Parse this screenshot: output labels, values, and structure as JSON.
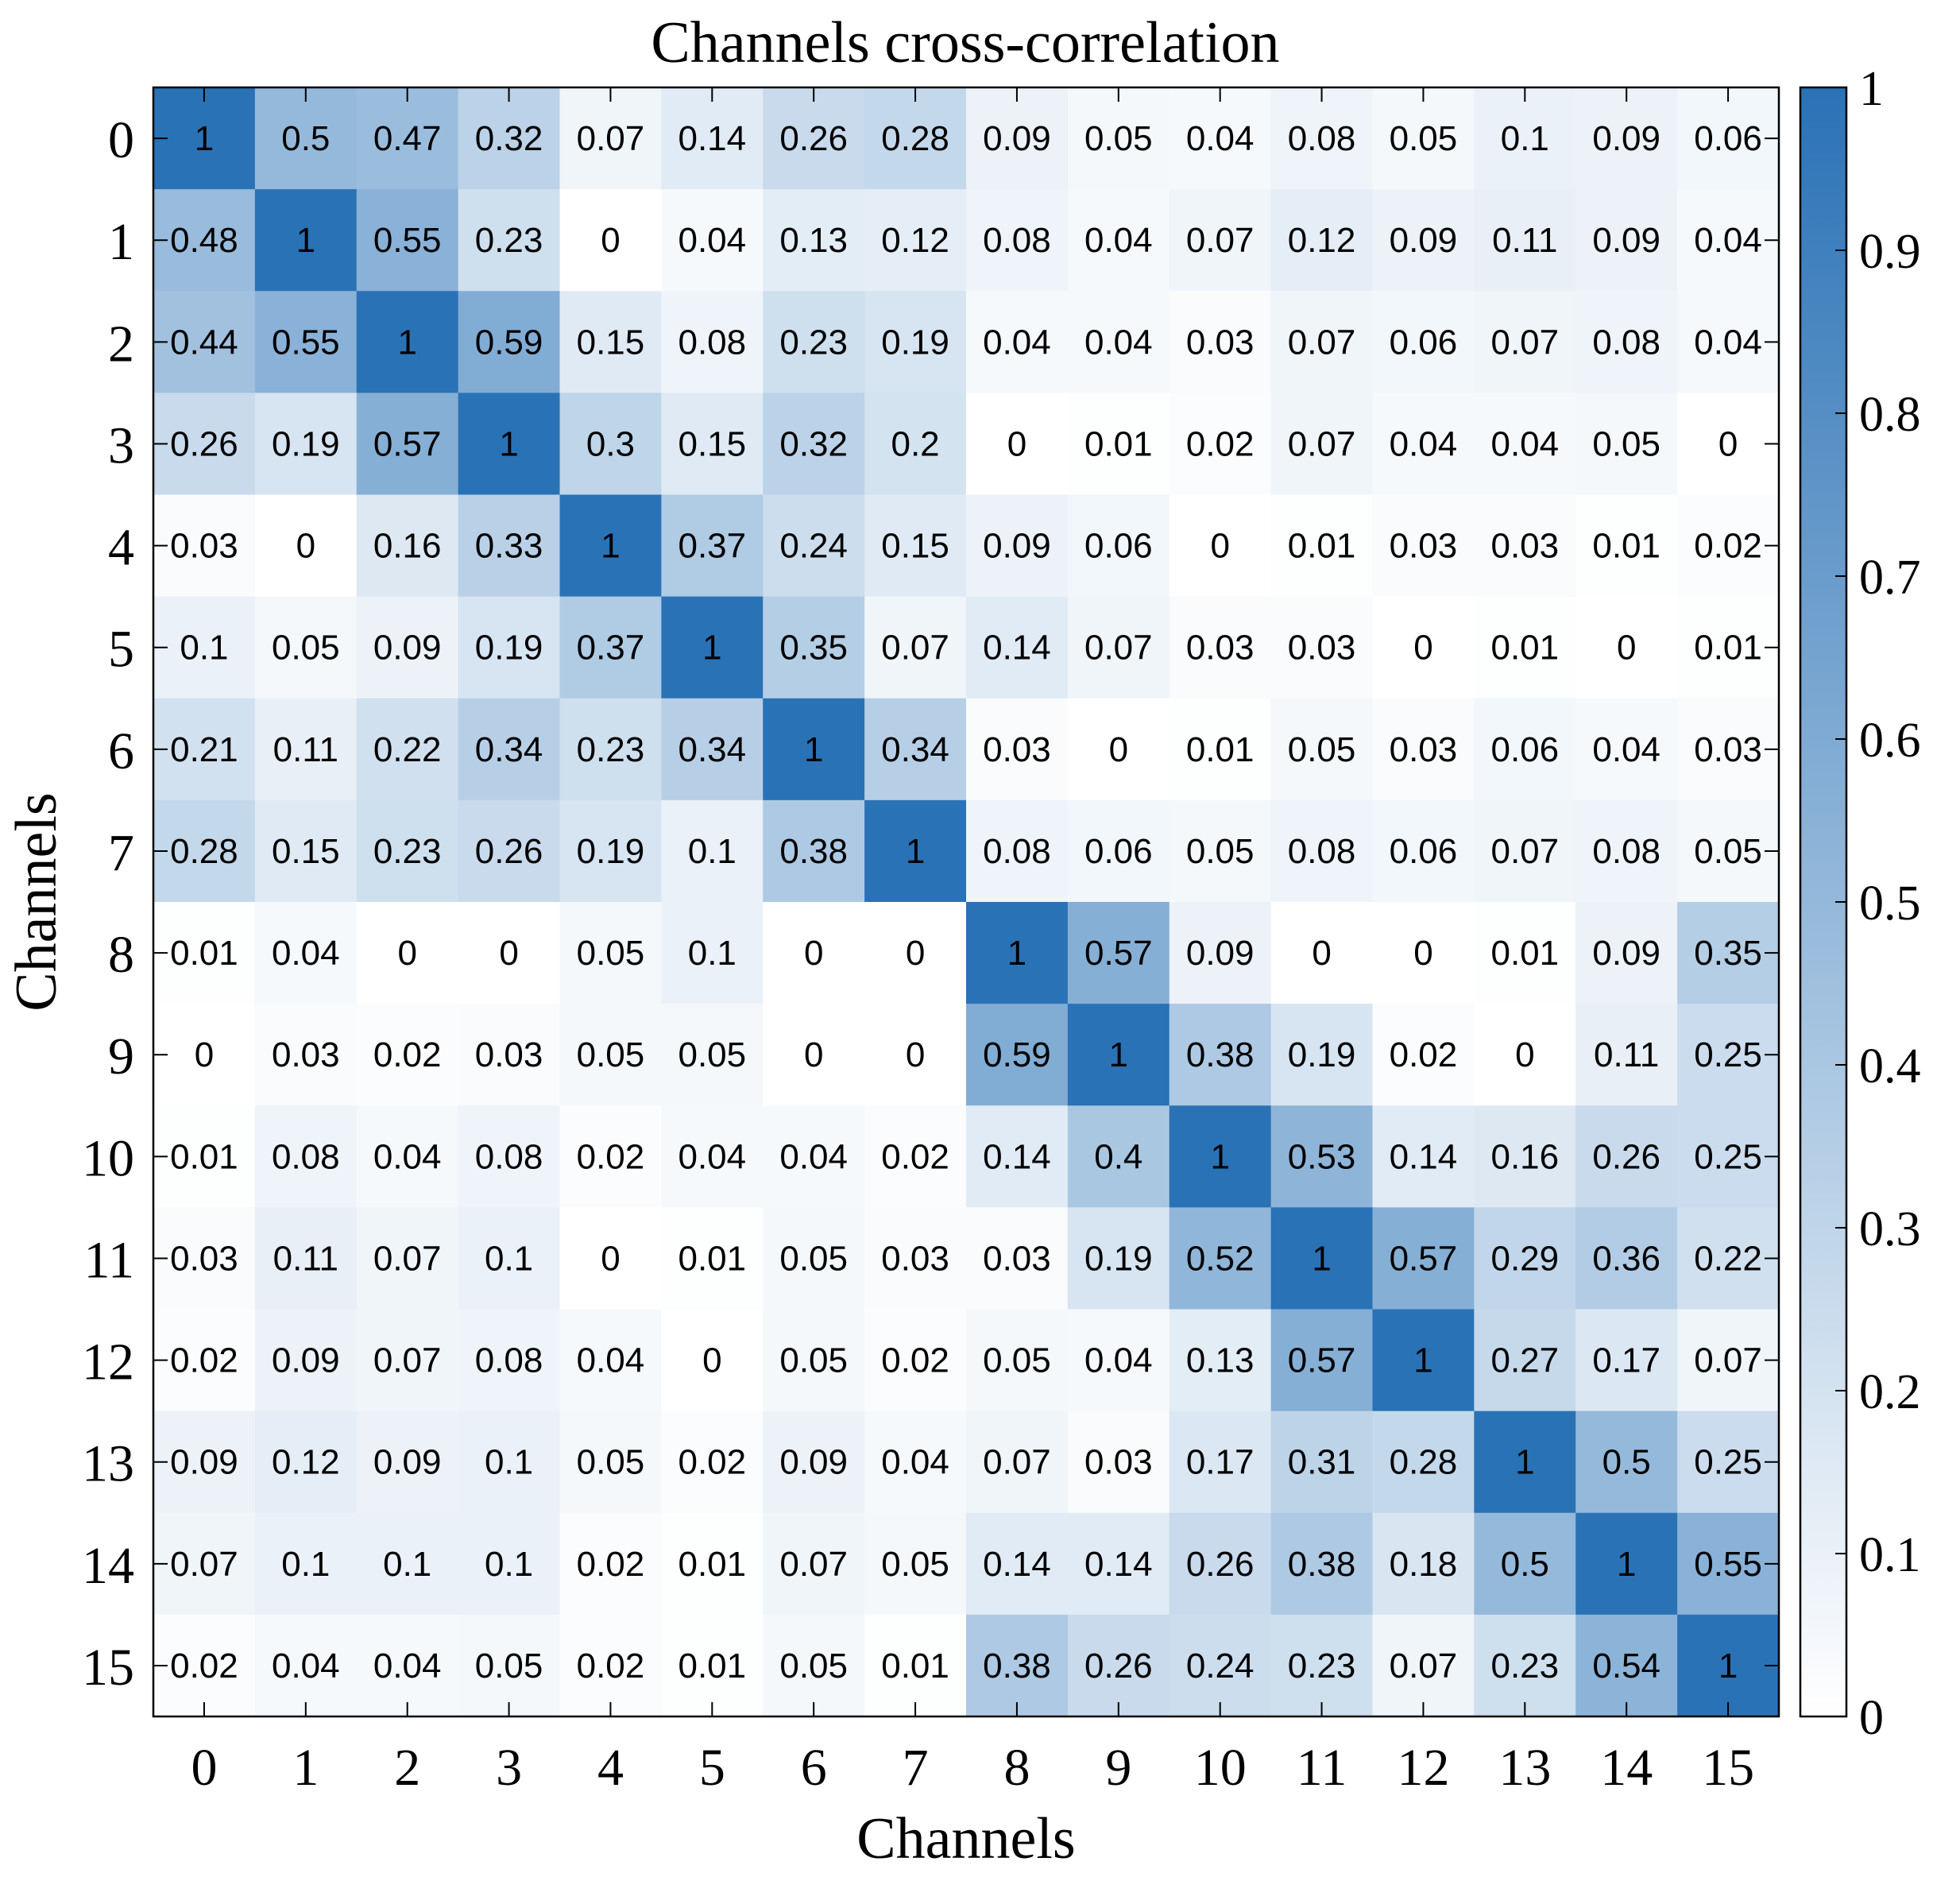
{
  "chart_data": {
    "type": "heatmap",
    "title": "Channels cross-correlation",
    "xlabel": "Channels",
    "ylabel": "Channels",
    "x_categories": [
      "0",
      "1",
      "2",
      "3",
      "4",
      "5",
      "6",
      "7",
      "8",
      "9",
      "10",
      "11",
      "12",
      "13",
      "14",
      "15"
    ],
    "y_categories": [
      "0",
      "1",
      "2",
      "3",
      "4",
      "5",
      "6",
      "7",
      "8",
      "9",
      "10",
      "11",
      "12",
      "13",
      "14",
      "15"
    ],
    "values": [
      [
        1,
        0.5,
        0.47,
        0.32,
        0.07,
        0.14,
        0.26,
        0.28,
        0.09,
        0.05,
        0.04,
        0.08,
        0.05,
        0.1,
        0.09,
        0.06
      ],
      [
        0.48,
        1,
        0.55,
        0.23,
        0,
        0.04,
        0.13,
        0.12,
        0.08,
        0.04,
        0.07,
        0.12,
        0.09,
        0.11,
        0.09,
        0.04
      ],
      [
        0.44,
        0.55,
        1,
        0.59,
        0.15,
        0.08,
        0.23,
        0.19,
        0.04,
        0.04,
        0.03,
        0.07,
        0.06,
        0.07,
        0.08,
        0.04
      ],
      [
        0.26,
        0.19,
        0.57,
        1,
        0.3,
        0.15,
        0.32,
        0.2,
        0,
        0.01,
        0.02,
        0.07,
        0.04,
        0.04,
        0.05,
        0
      ],
      [
        0.03,
        0,
        0.16,
        0.33,
        1,
        0.37,
        0.24,
        0.15,
        0.09,
        0.06,
        0,
        0.01,
        0.03,
        0.03,
        0.01,
        0.02
      ],
      [
        0.1,
        0.05,
        0.09,
        0.19,
        0.37,
        1,
        0.35,
        0.07,
        0.14,
        0.07,
        0.03,
        0.03,
        0,
        0.01,
        0,
        0.01
      ],
      [
        0.21,
        0.11,
        0.22,
        0.34,
        0.23,
        0.34,
        1,
        0.34,
        0.03,
        0,
        0.01,
        0.05,
        0.03,
        0.06,
        0.04,
        0.03
      ],
      [
        0.28,
        0.15,
        0.23,
        0.26,
        0.19,
        0.1,
        0.38,
        1,
        0.08,
        0.06,
        0.05,
        0.08,
        0.06,
        0.07,
        0.08,
        0.05
      ],
      [
        0.01,
        0.04,
        0,
        0,
        0.05,
        0.1,
        0,
        0,
        1,
        0.57,
        0.09,
        0,
        0,
        0.01,
        0.09,
        0.35
      ],
      [
        0,
        0.03,
        0.02,
        0.03,
        0.05,
        0.05,
        0,
        0,
        0.59,
        1,
        0.38,
        0.19,
        0.02,
        0,
        0.11,
        0.25
      ],
      [
        0.01,
        0.08,
        0.04,
        0.08,
        0.02,
        0.04,
        0.04,
        0.02,
        0.14,
        0.4,
        1,
        0.53,
        0.14,
        0.16,
        0.26,
        0.25
      ],
      [
        0.03,
        0.11,
        0.07,
        0.1,
        0,
        0.01,
        0.05,
        0.03,
        0.03,
        0.19,
        0.52,
        1,
        0.57,
        0.29,
        0.36,
        0.22
      ],
      [
        0.02,
        0.09,
        0.07,
        0.08,
        0.04,
        0,
        0.05,
        0.02,
        0.05,
        0.04,
        0.13,
        0.57,
        1,
        0.27,
        0.17,
        0.07
      ],
      [
        0.09,
        0.12,
        0.09,
        0.1,
        0.05,
        0.02,
        0.09,
        0.04,
        0.07,
        0.03,
        0.17,
        0.31,
        0.28,
        1,
        0.5,
        0.25
      ],
      [
        0.07,
        0.1,
        0.1,
        0.1,
        0.02,
        0.01,
        0.07,
        0.05,
        0.14,
        0.14,
        0.26,
        0.38,
        0.18,
        0.5,
        1,
        0.55
      ],
      [
        0.02,
        0.04,
        0.04,
        0.05,
        0.02,
        0.01,
        0.05,
        0.01,
        0.38,
        0.26,
        0.24,
        0.23,
        0.07,
        0.23,
        0.54,
        1
      ]
    ],
    "colorbar": {
      "range": [
        0,
        1
      ],
      "ticks": [
        "0",
        "0.1",
        "0.2",
        "0.3",
        "0.4",
        "0.5",
        "0.6",
        "0.7",
        "0.8",
        "0.9",
        "1"
      ],
      "color_low": "#ffffff",
      "color_high": "#2a72b6"
    }
  }
}
